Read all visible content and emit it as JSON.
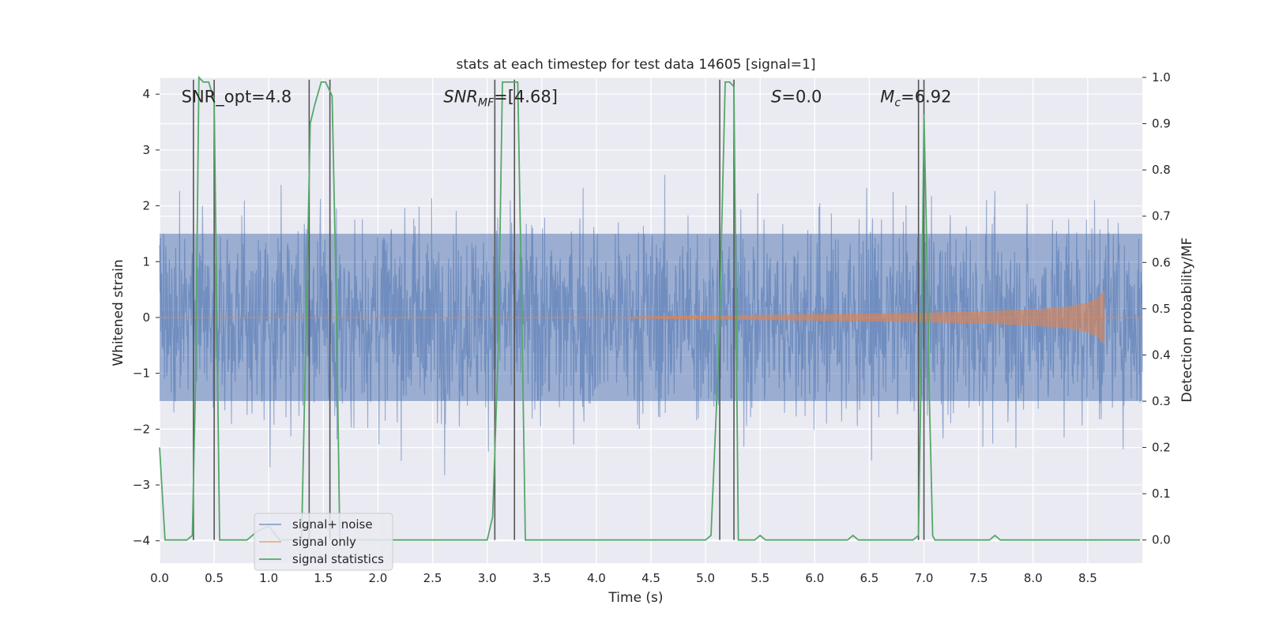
{
  "chart_data": {
    "type": "line",
    "title": "stats at each timestep for test data 14605 [signal=1]",
    "xlabel": "Time (s)",
    "ylabel_left": "Whitened strain",
    "ylabel_right": "Detection probability/MF",
    "xlim": [
      0.0,
      9.0
    ],
    "ylim_left": [
      -4.4,
      4.3
    ],
    "ylim_right": [
      -0.05,
      1.0
    ],
    "x_ticks": [
      "0.0",
      "0.5",
      "1.0",
      "1.5",
      "2.0",
      "2.5",
      "3.0",
      "3.5",
      "4.0",
      "4.5",
      "5.0",
      "5.5",
      "6.0",
      "6.5",
      "7.0",
      "7.5",
      "8.0",
      "8.5"
    ],
    "y_ticks_left": [
      "−4",
      "−3",
      "−2",
      "−1",
      "0",
      "1",
      "2",
      "3",
      "4"
    ],
    "y_ticks_right": [
      "0.0",
      "0.1",
      "0.2",
      "0.3",
      "0.4",
      "0.5",
      "0.6",
      "0.7",
      "0.8",
      "0.9",
      "1.0"
    ],
    "grid": true,
    "background": "#eaeaf2",
    "legend_position": "lower-left",
    "annotations": [
      {
        "text": "SNR_opt=4.8",
        "x": 0.2,
        "y": 3.95
      },
      {
        "text": "SNR",
        "sub": "MF",
        "suffix": "=[4.68]",
        "x": 2.6,
        "y": 3.95
      },
      {
        "text": "S",
        "suffix": "=0.0",
        "x": 5.6,
        "y": 3.95
      },
      {
        "text": "M",
        "sub": "c",
        "suffix": "=6.92",
        "x": 6.6,
        "y": 3.95
      }
    ],
    "series": [
      {
        "name": "signal+ noise",
        "color": "#4c72b0",
        "axis": "left",
        "description": "whitened noise with signal",
        "amplitude_envelope": 4.0
      },
      {
        "name": "signal only",
        "color": "#dd8452",
        "axis": "left",
        "envelope": {
          "x": [
            4.3,
            5.0,
            6.0,
            7.0,
            7.5,
            8.0,
            8.3,
            8.5,
            8.6,
            8.65
          ],
          "amp": [
            0.01,
            0.03,
            0.05,
            0.08,
            0.1,
            0.14,
            0.18,
            0.26,
            0.35,
            0.48
          ]
        }
      },
      {
        "name": "signal statistics",
        "color": "#55a868",
        "axis": "right",
        "x": [
          0.0,
          0.05,
          0.15,
          0.25,
          0.3,
          0.33,
          0.36,
          0.4,
          0.45,
          0.5,
          0.55,
          0.6,
          0.7,
          0.8,
          0.9,
          1.0,
          1.1,
          1.2,
          1.3,
          1.35,
          1.38,
          1.42,
          1.48,
          1.52,
          1.58,
          1.62,
          1.65,
          1.7,
          1.8,
          2.0,
          2.5,
          3.0,
          3.05,
          3.1,
          3.14,
          3.18,
          3.22,
          3.28,
          3.32,
          3.35,
          3.4,
          3.5,
          4.0,
          4.5,
          5.0,
          5.05,
          5.12,
          5.18,
          5.22,
          5.26,
          5.3,
          5.35,
          5.45,
          5.5,
          5.55,
          5.6,
          5.8,
          6.0,
          6.3,
          6.35,
          6.4,
          6.5,
          6.9,
          6.95,
          6.97,
          7.0,
          7.02,
          7.05,
          7.08,
          7.1,
          7.2,
          7.6,
          7.65,
          7.7,
          7.75,
          7.9,
          8.0,
          8.1,
          8.5,
          8.98
        ],
        "values": [
          0.2,
          0.0,
          0.0,
          0.0,
          0.01,
          0.35,
          1.0,
          0.99,
          0.99,
          0.95,
          0.0,
          0.0,
          0.0,
          0.0,
          0.02,
          0.03,
          0.0,
          0.0,
          0.0,
          0.55,
          0.9,
          0.94,
          0.99,
          0.99,
          0.96,
          0.5,
          0.0,
          0.0,
          0.0,
          0.0,
          0.0,
          0.0,
          0.05,
          0.4,
          0.99,
          0.99,
          0.99,
          0.99,
          0.45,
          0.0,
          0.0,
          0.0,
          0.0,
          0.0,
          0.0,
          0.01,
          0.4,
          0.99,
          0.99,
          0.98,
          0.0,
          0.0,
          0.0,
          0.01,
          0.0,
          0.0,
          0.0,
          0.0,
          0.0,
          0.01,
          0.0,
          0.0,
          0.0,
          0.01,
          0.3,
          0.92,
          0.7,
          0.3,
          0.01,
          0.0,
          0.0,
          0.0,
          0.01,
          0.0,
          0.0,
          0.0,
          0.0,
          0.0,
          0.0,
          0.0
        ]
      }
    ],
    "vertical_lines": [
      0.31,
      0.5,
      1.37,
      1.56,
      3.07,
      3.25,
      5.13,
      5.26,
      6.95,
      7.0
    ]
  }
}
